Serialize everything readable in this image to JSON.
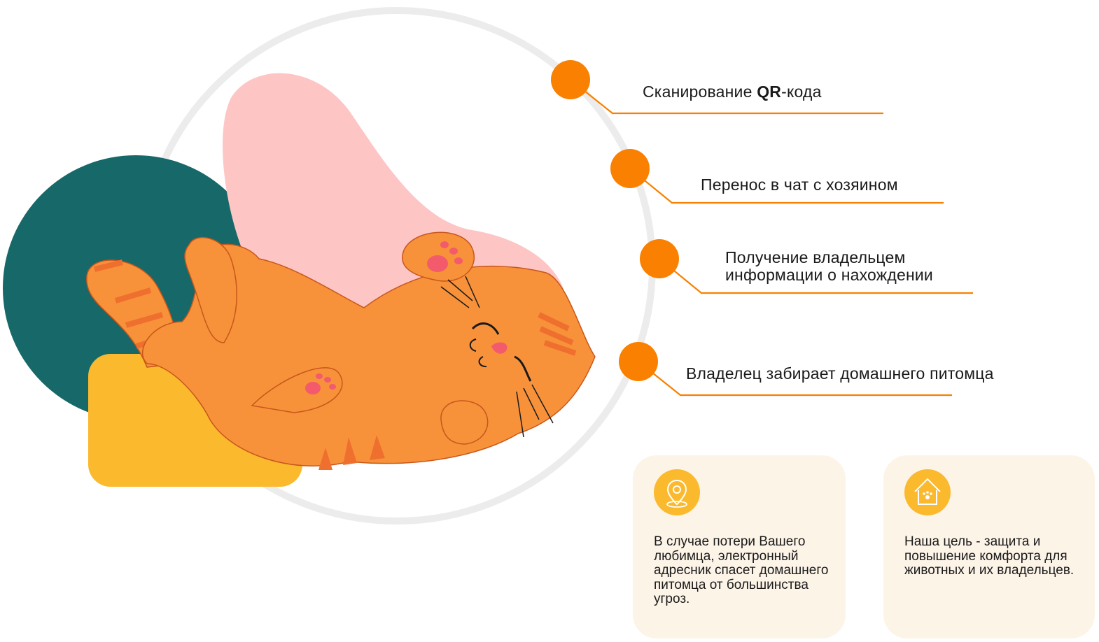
{
  "steps": [
    {
      "label_prefix": "Сканирование ",
      "label_bold": "QR",
      "label_suffix": "-кода"
    },
    {
      "label": "Перенос в чат с хозяином"
    },
    {
      "label_line1": "Получение владельцем",
      "label_line2": "информации о нахождении"
    },
    {
      "label": "Владелец забирает домашнего питомца"
    }
  ],
  "cards": [
    {
      "icon": "location-pin-icon",
      "text": "В случае потери Вашего любимца, электронный адресник спасет домашнего питомца от большинства угроз."
    },
    {
      "icon": "pet-house-icon",
      "text": "Наша цель - защита и повышение комфорта для животных и их владельцев."
    }
  ],
  "colors": {
    "accent_orange": "#f98000",
    "teal": "#176868",
    "pink": "#fec5c5",
    "yellow": "#fbb92d",
    "cat_orange": "#f7923a",
    "card_bg": "#fdf4e8"
  }
}
